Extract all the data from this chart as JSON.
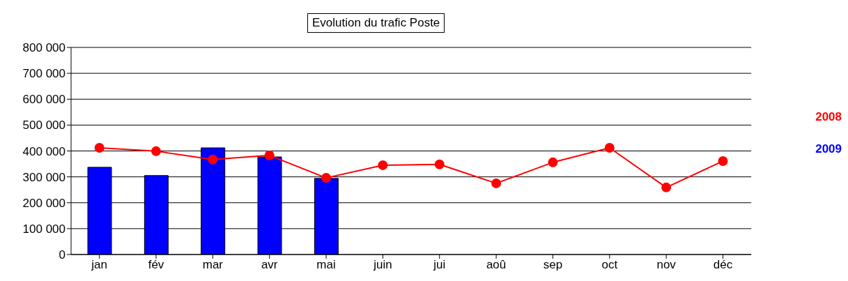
{
  "chart_data": {
    "type": "bar",
    "title": "Evolution du trafic Poste",
    "categories": [
      "jan",
      "fév",
      "mar",
      "avr",
      "mai",
      "juin",
      "jui",
      "aoû",
      "sep",
      "oct",
      "nov",
      "déc"
    ],
    "series": [
      {
        "name": "2008",
        "type": "line",
        "color": "#ff0000",
        "values": [
          412000,
          399000,
          367000,
          383000,
          296000,
          345000,
          348000,
          275000,
          356000,
          412000,
          259000,
          361000
        ]
      },
      {
        "name": "2009",
        "color": "#0000ff",
        "values": [
          337000,
          305000,
          412000,
          377000,
          294000,
          null,
          null,
          null,
          null,
          null,
          null,
          null
        ]
      }
    ],
    "ylim": [
      0,
      800000
    ],
    "yticks": [
      0,
      {
        "value": 100000,
        "label": "100 000"
      },
      {
        "value": 200000,
        "label": "200 000"
      },
      {
        "value": 300000,
        "label": "300 000"
      },
      {
        "value": 400000,
        "label": "400 000"
      },
      {
        "value": 500000,
        "label": "500 000"
      },
      {
        "value": 600000,
        "label": "600 000"
      },
      {
        "value": 700000,
        "label": "700 000"
      },
      {
        "value": 800000,
        "label": "800 000"
      }
    ],
    "grid": "y",
    "legend": "right",
    "marker": "circle"
  }
}
